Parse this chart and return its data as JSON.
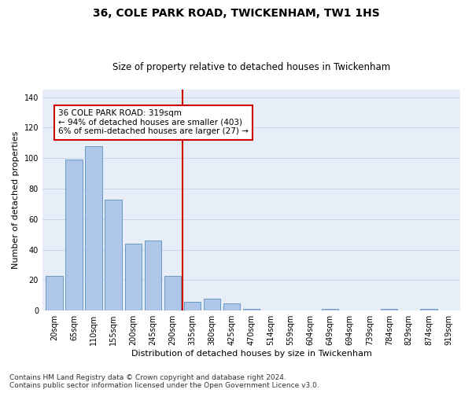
{
  "title": "36, COLE PARK ROAD, TWICKENHAM, TW1 1HS",
  "subtitle": "Size of property relative to detached houses in Twickenham",
  "xlabel": "Distribution of detached houses by size in Twickenham",
  "ylabel": "Number of detached properties",
  "categories": [
    "20sqm",
    "65sqm",
    "110sqm",
    "155sqm",
    "200sqm",
    "245sqm",
    "290sqm",
    "335sqm",
    "380sqm",
    "425sqm",
    "470sqm",
    "514sqm",
    "559sqm",
    "604sqm",
    "649sqm",
    "694sqm",
    "739sqm",
    "784sqm",
    "829sqm",
    "874sqm",
    "919sqm"
  ],
  "values": [
    23,
    99,
    108,
    73,
    44,
    46,
    23,
    6,
    8,
    5,
    1,
    0,
    0,
    0,
    1,
    0,
    0,
    1,
    0,
    1,
    0
  ],
  "bar_color": "#aec6e8",
  "bar_edge_color": "#5a8fc0",
  "vline_color": "#cc0000",
  "annotation_line1": "36 COLE PARK ROAD: 319sqm",
  "annotation_line2": "← 94% of detached houses are smaller (403)",
  "annotation_line3": "6% of semi-detached houses are larger (27) →",
  "annotation_box_color": "#ffffff",
  "annotation_box_edge_color": "#cc0000",
  "ylim": [
    0,
    145
  ],
  "yticks": [
    0,
    20,
    40,
    60,
    80,
    100,
    120,
    140
  ],
  "grid_color": "#c8d8ea",
  "background_color": "#e8eef7",
  "footer_line1": "Contains HM Land Registry data © Crown copyright and database right 2024.",
  "footer_line2": "Contains public sector information licensed under the Open Government Licence v3.0.",
  "title_fontsize": 10,
  "subtitle_fontsize": 8.5,
  "xlabel_fontsize": 8,
  "ylabel_fontsize": 8,
  "tick_fontsize": 7,
  "annotation_fontsize": 7.5,
  "footer_fontsize": 6.5
}
